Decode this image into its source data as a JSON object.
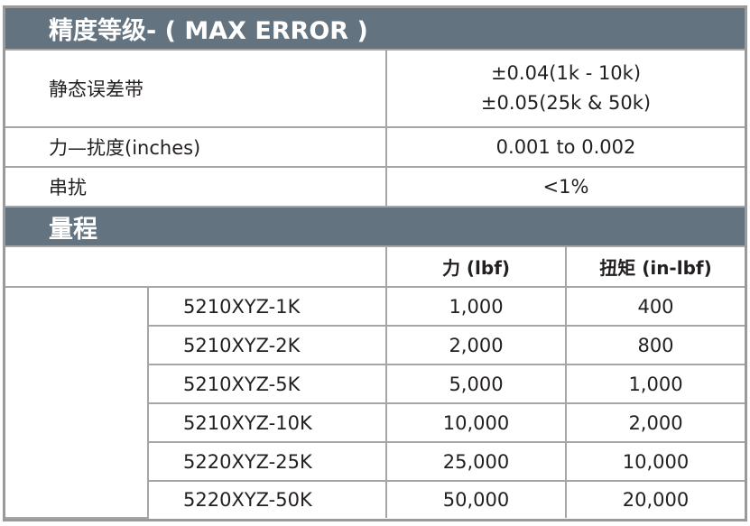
{
  "accuracy": {
    "title": "精度等级- ( MAX ERROR )",
    "rows": [
      {
        "label": "静态误差带",
        "value_lines": [
          "±0.04(1k - 10k)",
          "±0.05(25k & 50k)"
        ]
      },
      {
        "label": "力—扰度(inches)",
        "value": "0.001 to 0.002"
      },
      {
        "label": "串扰",
        "value": "<1%"
      }
    ]
  },
  "range": {
    "title": "量程",
    "columns": [
      "力 (lbf)",
      "扭矩 (in-lbf)"
    ],
    "rows": [
      {
        "model": "5210XYZ-1K",
        "force": "1,000",
        "torque": "400"
      },
      {
        "model": "5210XYZ-2K",
        "force": "2,000",
        "torque": "800"
      },
      {
        "model": "5210XYZ-5K",
        "force": "5,000",
        "torque": "1,000"
      },
      {
        "model": "5210XYZ-10K",
        "force": "10,000",
        "torque": "2,000"
      },
      {
        "model": "5220XYZ-25K",
        "force": "25,000",
        "torque": "10,000"
      },
      {
        "model": "5220XYZ-50K",
        "force": "50,000",
        "torque": "20,000"
      }
    ]
  },
  "colors": {
    "header_bg": "#637480",
    "border": "#a6a6a6"
  }
}
